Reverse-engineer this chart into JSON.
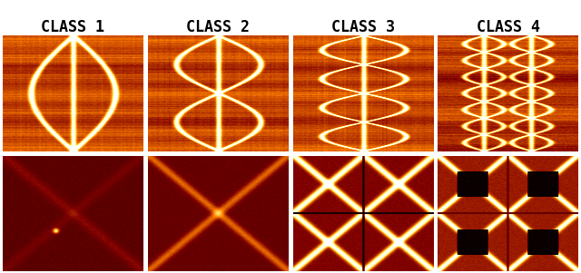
{
  "titles": [
    "CLASS 1",
    "CLASS 2",
    "CLASS 3",
    "CLASS 4"
  ],
  "title_fontsize": 12,
  "title_fontweight": "bold",
  "fig_width": 6.4,
  "fig_height": 3.01,
  "background_color": "#ffffff",
  "cmap": "afmhot",
  "n_cols": 4,
  "n_rows": 2,
  "img_size": 128
}
